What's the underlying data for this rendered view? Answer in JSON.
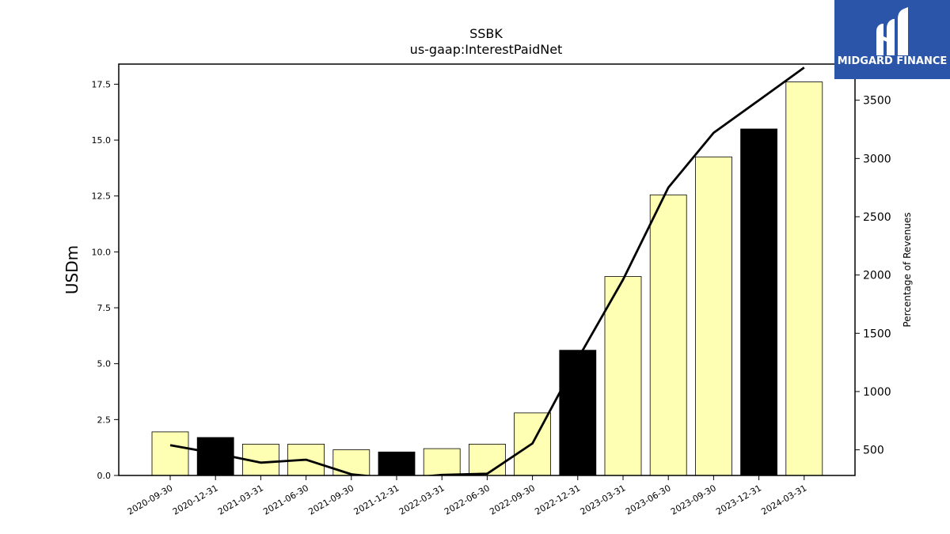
{
  "chart_data": {
    "type": "bar",
    "title": "SSBK",
    "subtitle": "us-gaap:InterestPaidNet",
    "ylabel": "USDm",
    "y2label": "Percentage of Revenues",
    "ylim": [
      0,
      18.4
    ],
    "y2lim": [
      280,
      3810
    ],
    "yticks": [
      "0.0",
      "2.5",
      "5.0",
      "7.5",
      "10.0",
      "12.5",
      "15.0",
      "17.5"
    ],
    "y2ticks": [
      "500",
      "1000",
      "1500",
      "2000",
      "2500",
      "3000",
      "3500"
    ],
    "categories": [
      "2020-09-30",
      "2020-12-31",
      "2021-03-31",
      "2021-06-30",
      "2021-09-30",
      "2021-12-31",
      "2022-03-31",
      "2022-06-30",
      "2022-09-30",
      "2022-12-31",
      "2023-03-31",
      "2023-06-30",
      "2023-09-30",
      "2023-12-31",
      "2024-03-31"
    ],
    "series": [
      {
        "type": "bar",
        "values": [
          1.95,
          1.7,
          1.4,
          1.4,
          1.15,
          1.05,
          1.2,
          1.4,
          2.8,
          5.6,
          8.9,
          12.55,
          14.25,
          15.5,
          17.6
        ],
        "colors": [
          "#ffffb3",
          "#000000",
          "#ffffb3",
          "#ffffb3",
          "#ffffb3",
          "#000000",
          "#ffffb3",
          "#ffffb3",
          "#ffffb3",
          "#000000",
          "#ffffb3",
          "#ffffb3",
          "#ffffb3",
          "#000000",
          "#ffffb3"
        ]
      },
      {
        "type": "line",
        "axis": "right",
        "values": [
          540,
          470,
          390,
          415,
          290,
          250,
          285,
          295,
          555,
          1280,
          1960,
          2750,
          3220,
          3500,
          3780
        ],
        "color": "#000000"
      }
    ],
    "grid": false
  },
  "logo": {
    "text": "MIDGARD FINANCE",
    "bg_color": "#2b55a8",
    "icon": "midgard-m-logo-icon"
  }
}
